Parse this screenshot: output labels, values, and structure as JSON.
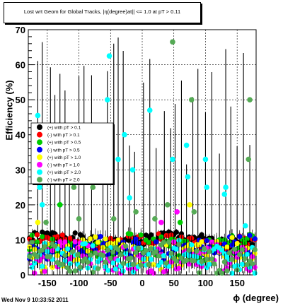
{
  "timestamp": "Wed Nov  9 10:33:52 2011",
  "chart_data": {
    "type": "scatter",
    "title": "Lost wrt Geom for Global Tracks, |η(degree)at|| <= 1.0 at pT > 0.11",
    "xlabel": "ϕ (degree)",
    "ylabel": "Efficiency (%)",
    "xlim": [
      -180,
      180
    ],
    "ylim": [
      0,
      70
    ],
    "xticks": [
      -150,
      -100,
      -50,
      0,
      50,
      100,
      150
    ],
    "yticks": [
      0,
      10,
      20,
      30,
      40,
      50,
      60,
      70
    ],
    "grid": true,
    "legend_position": "middle-left",
    "series": [
      {
        "name": "(+) with pT > 0.1",
        "color": "#000000",
        "level": 10,
        "spread": 1.5,
        "seed": 1
      },
      {
        "name": "(-) with pT > 0.1",
        "color": "#ff0000",
        "level": 9.5,
        "spread": 1.8,
        "seed": 2
      },
      {
        "name": "(+) with pT > 0.5",
        "color": "#00cc00",
        "level": 8,
        "spread": 3,
        "seed": 3
      },
      {
        "name": "(-) with pT > 0.5",
        "color": "#0000ff",
        "level": 7.5,
        "spread": 3,
        "seed": 4
      },
      {
        "name": "(+) with pT > 1.0",
        "color": "#ffff00",
        "level": 6,
        "spread": 4,
        "seed": 5
      },
      {
        "name": "(-) with pT > 1.0",
        "color": "#ff00ff",
        "level": 5,
        "spread": 4,
        "seed": 6
      },
      {
        "name": "(+) with pT > 2.0",
        "color": "#00ffff",
        "level": 5,
        "spread": 4,
        "seed": 7
      },
      {
        "name": "(-) with pT > 2.0",
        "color": "#55aa55",
        "level": 5,
        "spread": 4,
        "seed": 8
      }
    ],
    "outliers": [
      {
        "series": 6,
        "x": -165,
        "y": 45.5
      },
      {
        "series": 6,
        "x": -162,
        "y": 25
      },
      {
        "series": 6,
        "x": -158,
        "y": 20
      },
      {
        "series": 6,
        "x": -138,
        "y": 35
      },
      {
        "series": 6,
        "x": -130,
        "y": 20
      },
      {
        "series": 6,
        "x": -115,
        "y": 33
      },
      {
        "series": 6,
        "x": -80,
        "y": 33
      },
      {
        "series": 6,
        "x": -55,
        "y": 50
      },
      {
        "series": 6,
        "x": -52,
        "y": 62.5
      },
      {
        "series": 6,
        "x": -38,
        "y": 33
      },
      {
        "series": 6,
        "x": -28,
        "y": 40
      },
      {
        "series": 6,
        "x": -20,
        "y": 22
      },
      {
        "series": 6,
        "x": -15,
        "y": 30
      },
      {
        "series": 6,
        "x": 12,
        "y": 47
      },
      {
        "series": 6,
        "x": 48,
        "y": 33
      },
      {
        "series": 6,
        "x": 70,
        "y": 37
      },
      {
        "series": 6,
        "x": 72,
        "y": 28
      },
      {
        "series": 6,
        "x": 100,
        "y": 33
      },
      {
        "series": 6,
        "x": 102,
        "y": 25
      },
      {
        "series": 6,
        "x": 130,
        "y": 23
      },
      {
        "series": 6,
        "x": 132,
        "y": 25
      },
      {
        "series": 6,
        "x": 163,
        "y": 14
      },
      {
        "series": 7,
        "x": 48,
        "y": 66.5
      },
      {
        "series": 7,
        "x": 78,
        "y": 50
      },
      {
        "series": 7,
        "x": 170,
        "y": 50
      },
      {
        "series": 7,
        "x": 168,
        "y": 33
      },
      {
        "series": 7,
        "x": -108,
        "y": 25
      },
      {
        "series": 7,
        "x": -78,
        "y": 25
      },
      {
        "series": 7,
        "x": 82,
        "y": 18
      },
      {
        "series": 7,
        "x": 40,
        "y": 20
      },
      {
        "series": 7,
        "x": -152,
        "y": 15
      },
      {
        "series": 7,
        "x": -100,
        "y": 16
      },
      {
        "series": 7,
        "x": -45,
        "y": 16
      },
      {
        "series": 7,
        "x": -10,
        "y": 18
      },
      {
        "series": 7,
        "x": 20,
        "y": 16
      },
      {
        "series": 2,
        "x": -130,
        "y": 20
      },
      {
        "series": 2,
        "x": 60,
        "y": 15
      },
      {
        "series": 5,
        "x": 55,
        "y": 18
      },
      {
        "series": 5,
        "x": 30,
        "y": 15
      },
      {
        "series": 4,
        "x": 75,
        "y": 20
      },
      {
        "series": 4,
        "x": -165,
        "y": 15
      }
    ],
    "spikes": [
      -165,
      -158,
      -145,
      -138,
      -130,
      -122,
      -115,
      -100,
      -92,
      -80,
      -62,
      -55,
      -45,
      -38,
      -30,
      -20,
      -12,
      2,
      12,
      22,
      35,
      45,
      52,
      62,
      70,
      80,
      88,
      100,
      110,
      122,
      132,
      140,
      150,
      160,
      170
    ]
  }
}
